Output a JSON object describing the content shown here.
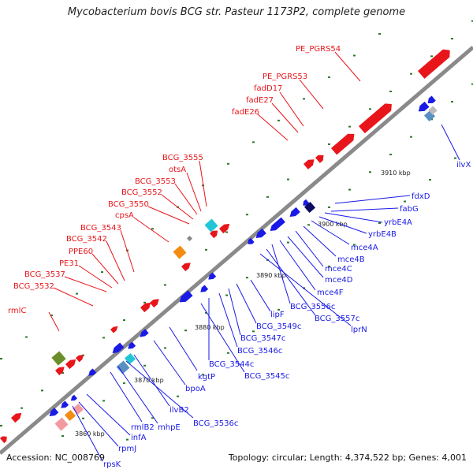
{
  "title": "Mycobacterium bovis BCG str. Pasteur 1173P2, complete genome",
  "footer": {
    "accession": "Accession: NC_008769",
    "topology": "Topology: circular; Length: 4,374,522 bp; Genes: 4,001"
  },
  "colors": {
    "forward": "#e8151b",
    "reverse": "#1a1ae6",
    "backbone": "#8a8a8a",
    "dots": "#2a7a2a"
  },
  "ticks": [
    "3860 kbp",
    "3870 kbp",
    "3880 kbp",
    "3890 kbp",
    "3900 kbp",
    "3910 kbp"
  ],
  "forward_labels": [
    "PE_PGRS54",
    "PE_PGRS53",
    "fadD17",
    "fadE27",
    "fadE26",
    "BCG_3555",
    "otsA",
    "BCG_3553",
    "BCG_3552",
    "BCG_3550",
    "cpsA",
    "BCG_3543",
    "BCG_3542",
    "PPE60",
    "PE31",
    "BCG_3537",
    "BCG_3532",
    "rmlC"
  ],
  "reverse_labels": [
    "ilvX",
    "fdxD",
    "fabG",
    "yrbE4A",
    "yrbE4B",
    "mce4A",
    "mce4B",
    "mce4C",
    "mce4D",
    "mce4F",
    "BCG_3556c",
    "BCG_3557c",
    "lprN",
    "lipF",
    "BCG_3549c",
    "BCG_3547c",
    "BCG_3546c",
    "BCG_3544c",
    "BCG_3545c",
    "kgtP",
    "bpoA",
    "ilvB2",
    "BCG_3536c",
    "mhpE",
    "rmlB2",
    "infA",
    "rpmJ",
    "rpsK"
  ]
}
